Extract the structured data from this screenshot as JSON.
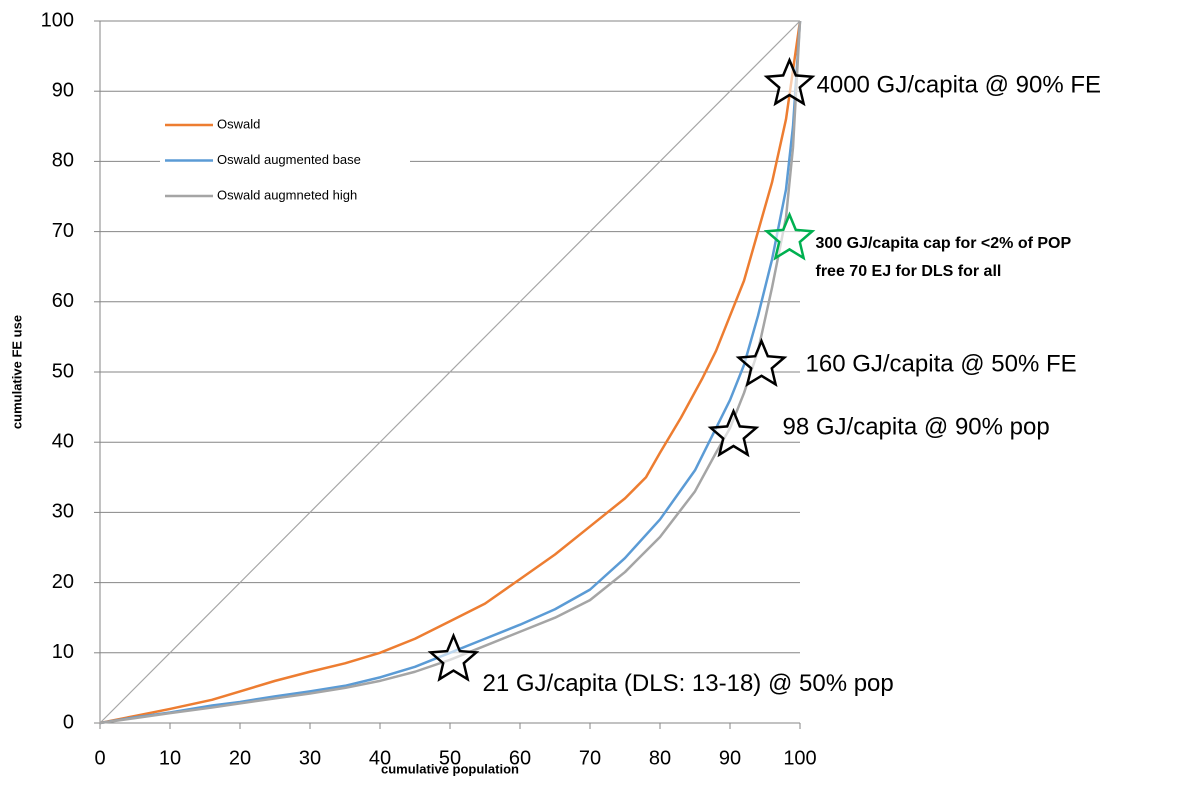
{
  "chart_data": {
    "type": "line",
    "xlabel": "cumulative population",
    "ylabel": "cumulative FE use",
    "xlim": [
      0,
      100
    ],
    "ylim": [
      0,
      100
    ],
    "xticks": [
      0,
      10,
      20,
      30,
      40,
      50,
      60,
      70,
      80,
      90,
      100
    ],
    "yticks": [
      0,
      10,
      20,
      30,
      40,
      50,
      60,
      70,
      80,
      90,
      100
    ],
    "grid": true,
    "reference_line": {
      "x": [
        0,
        100
      ],
      "y": [
        0,
        100
      ],
      "color": "#a6a6a6"
    },
    "series": [
      {
        "name": "Oswald",
        "color": "#ed7d31",
        "x": [
          0,
          5,
          10,
          16,
          20,
          25,
          30,
          35,
          40,
          45,
          50,
          55,
          60,
          65,
          70,
          75,
          78,
          80,
          83,
          86,
          88,
          90,
          92,
          94,
          96,
          98,
          100
        ],
        "values": [
          0,
          1,
          2,
          3.3,
          4.5,
          6,
          7.3,
          8.5,
          10,
          12,
          14.5,
          17,
          20.5,
          24,
          28,
          32,
          35,
          38.5,
          43.5,
          49,
          53,
          58,
          63,
          70,
          77,
          86,
          100
        ]
      },
      {
        "name": "Oswald augmented base",
        "color": "#5b9bd5",
        "x": [
          0,
          5,
          10,
          16,
          20,
          25,
          30,
          35,
          40,
          45,
          50,
          55,
          60,
          65,
          70,
          75,
          80,
          85,
          88,
          90,
          92,
          94,
          96,
          98,
          99,
          100
        ],
        "values": [
          0,
          0.8,
          1.5,
          2.5,
          3,
          3.8,
          4.5,
          5.3,
          6.5,
          8,
          10,
          12,
          14,
          16.2,
          19,
          23.5,
          29,
          36,
          42,
          46,
          51,
          58,
          66,
          76,
          85,
          100
        ]
      },
      {
        "name": "Oswald augmneted high",
        "color": "#a5a5a5",
        "x": [
          0,
          5,
          10,
          16,
          20,
          25,
          30,
          35,
          40,
          45,
          50,
          55,
          60,
          65,
          70,
          75,
          80,
          85,
          88,
          90,
          92,
          94,
          96,
          98,
          99,
          100
        ],
        "values": [
          0,
          0.7,
          1.4,
          2.2,
          2.8,
          3.5,
          4.2,
          5,
          6,
          7.3,
          9,
          11,
          13,
          15,
          17.5,
          21.5,
          26.5,
          33,
          38.5,
          42,
          47,
          53,
          62,
          72,
          82,
          100
        ]
      }
    ],
    "annotations": [
      {
        "x": 50.5,
        "y": 9,
        "color": "#000000",
        "text": [
          "21 GJ/capita (DLS: 13-18) @ 50% pop"
        ]
      },
      {
        "x": 90.5,
        "y": 41,
        "color": "#000000",
        "text": [
          "98 GJ/capita @ 90% pop"
        ]
      },
      {
        "x": 94.5,
        "y": 51,
        "color": "#000000",
        "text": [
          "160 GJ/capita @ 50% FE"
        ]
      },
      {
        "x": 98.5,
        "y": 69,
        "color": "#00b050",
        "text": [
          "300 GJ/capita cap for <2% of POP",
          "free 70 EJ for DLS for all"
        ]
      },
      {
        "x": 98.5,
        "y": 91,
        "color": "#000000",
        "text": [
          "4000 GJ/capita @ 90% FE"
        ]
      }
    ]
  }
}
